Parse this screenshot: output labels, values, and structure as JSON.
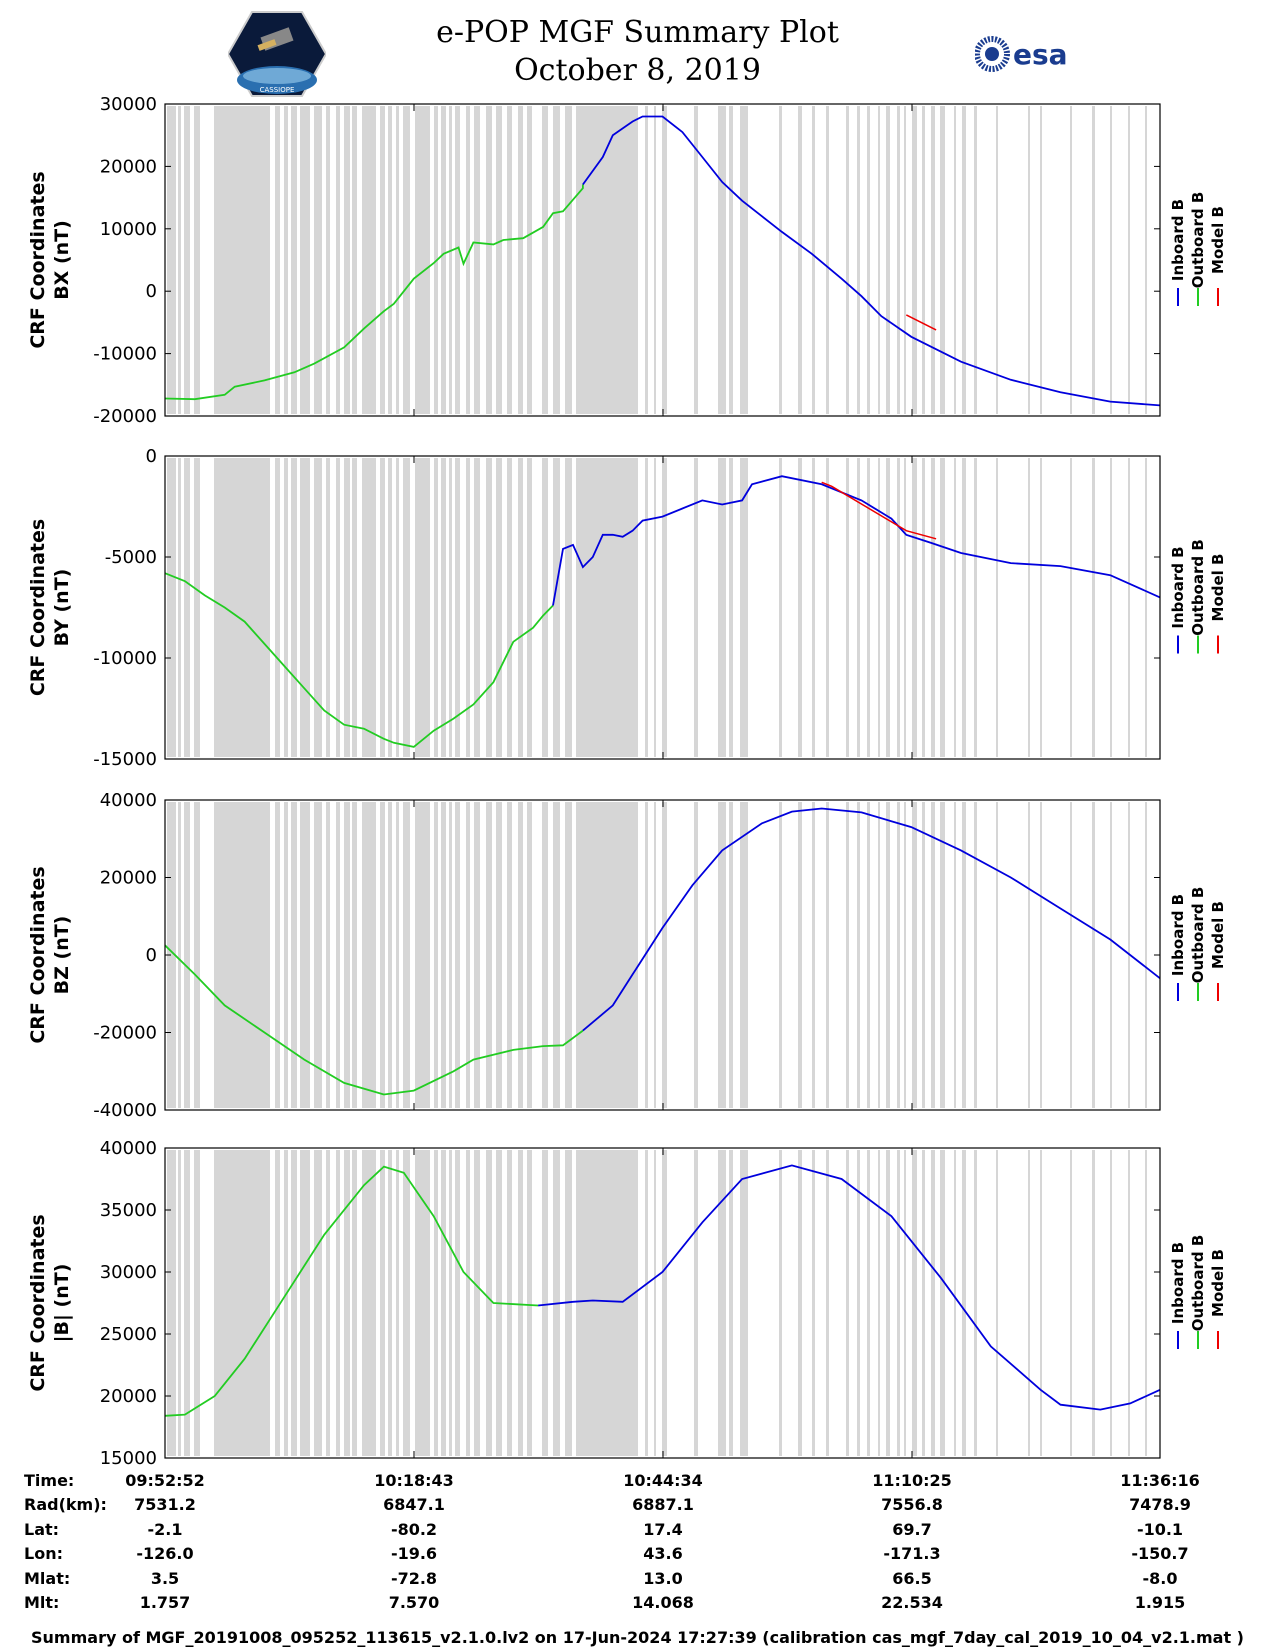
{
  "header": {
    "title_line1": "e-POP MGF Summary Plot",
    "title_line2": "October 8, 2019",
    "logo_left_text": "CASSIOPE",
    "logo_right_text": "esa"
  },
  "legend": {
    "inboard": "Inboard B",
    "outboard": "Outboard B",
    "model": "Model B"
  },
  "colors": {
    "inboard": "#0000dd",
    "outboard": "#22cc22",
    "model": "#ee0000",
    "gap": "#d6d6d6"
  },
  "chart_data": [
    {
      "type": "line",
      "ylabel_line1": "CRF Coordinates",
      "ylabel_line2": "BX (nT)",
      "ylim": [
        -20000,
        30000
      ],
      "yticks": [
        -20000,
        -10000,
        0,
        10000,
        20000,
        30000
      ],
      "series": [
        {
          "name": "Outboard B",
          "points": [
            [
              0,
              -17200
            ],
            [
              0.03,
              -17300
            ],
            [
              0.06,
              -16600
            ],
            [
              0.07,
              -15300
            ],
            [
              0.1,
              -14300
            ],
            [
              0.13,
              -13000
            ],
            [
              0.15,
              -11600
            ],
            [
              0.18,
              -9000
            ],
            [
              0.2,
              -6000
            ],
            [
              0.22,
              -3200
            ],
            [
              0.23,
              -2000
            ],
            [
              0.25,
              2000
            ],
            [
              0.27,
              4500
            ],
            [
              0.28,
              6000
            ],
            [
              0.295,
              7000
            ],
            [
              0.3,
              4400
            ],
            [
              0.31,
              7800
            ],
            [
              0.33,
              7500
            ],
            [
              0.34,
              8200
            ],
            [
              0.36,
              8500
            ],
            [
              0.38,
              10300
            ],
            [
              0.39,
              12500
            ],
            [
              0.4,
              12800
            ],
            [
              0.42,
              16500
            ],
            [
              0.42,
              17100
            ]
          ]
        },
        {
          "name": "Inboard B",
          "points": [
            [
              0.42,
              17100
            ],
            [
              0.44,
              21500
            ],
            [
              0.45,
              25000
            ],
            [
              0.47,
              27200
            ],
            [
              0.48,
              28000
            ],
            [
              0.5,
              28000
            ],
            [
              0.52,
              25500
            ],
            [
              0.54,
              21500
            ],
            [
              0.56,
              17500
            ],
            [
              0.58,
              14500
            ],
            [
              0.6,
              12000
            ],
            [
              0.62,
              9500
            ],
            [
              0.65,
              6000
            ],
            [
              0.68,
              2000
            ],
            [
              0.7,
              -800
            ],
            [
              0.72,
              -4000
            ],
            [
              0.75,
              -7300
            ],
            [
              0.8,
              -11300
            ],
            [
              0.85,
              -14200
            ],
            [
              0.9,
              -16200
            ],
            [
              0.95,
              -17700
            ],
            [
              1.0,
              -18300
            ]
          ]
        },
        {
          "name": "Model B",
          "points": [
            [
              0.745,
              -3800
            ],
            [
              0.76,
              -5000
            ],
            [
              0.775,
              -6200
            ]
          ]
        }
      ]
    },
    {
      "type": "line",
      "ylabel_line1": "CRF Coordinates",
      "ylabel_line2": "BY (nT)",
      "ylim": [
        -15000,
        0
      ],
      "yticks": [
        -15000,
        -10000,
        -5000,
        0
      ],
      "series": [
        {
          "name": "Outboard B",
          "points": [
            [
              0,
              -5800
            ],
            [
              0.02,
              -6200
            ],
            [
              0.04,
              -6900
            ],
            [
              0.06,
              -7500
            ],
            [
              0.08,
              -8200
            ],
            [
              0.1,
              -9300
            ],
            [
              0.12,
              -10400
            ],
            [
              0.14,
              -11500
            ],
            [
              0.16,
              -12600
            ],
            [
              0.18,
              -13300
            ],
            [
              0.2,
              -13500
            ],
            [
              0.22,
              -14000
            ],
            [
              0.23,
              -14200
            ],
            [
              0.25,
              -14400
            ],
            [
              0.27,
              -13600
            ],
            [
              0.29,
              -13000
            ],
            [
              0.31,
              -12300
            ],
            [
              0.33,
              -11200
            ],
            [
              0.35,
              -9200
            ],
            [
              0.37,
              -8500
            ],
            [
              0.38,
              -7900
            ],
            [
              0.39,
              -7400
            ]
          ]
        },
        {
          "name": "Inboard B",
          "points": [
            [
              0.39,
              -7400
            ],
            [
              0.4,
              -4600
            ],
            [
              0.41,
              -4400
            ],
            [
              0.42,
              -5500
            ],
            [
              0.43,
              -5000
            ],
            [
              0.44,
              -3900
            ],
            [
              0.45,
              -3900
            ],
            [
              0.46,
              -4000
            ],
            [
              0.47,
              -3700
            ],
            [
              0.48,
              -3200
            ],
            [
              0.5,
              -3000
            ],
            [
              0.52,
              -2600
            ],
            [
              0.54,
              -2200
            ],
            [
              0.56,
              -2400
            ],
            [
              0.58,
              -2200
            ],
            [
              0.59,
              -1400
            ],
            [
              0.62,
              -1000
            ],
            [
              0.66,
              -1400
            ],
            [
              0.7,
              -2200
            ],
            [
              0.73,
              -3100
            ],
            [
              0.745,
              -3900
            ],
            [
              0.77,
              -4300
            ],
            [
              0.8,
              -4800
            ],
            [
              0.85,
              -5300
            ],
            [
              0.9,
              -5450
            ],
            [
              0.95,
              -5900
            ],
            [
              1.0,
              -7000
            ]
          ]
        },
        {
          "name": "Model B",
          "points": [
            [
              0.66,
              -1300
            ],
            [
              0.67,
              -1500
            ],
            [
              0.745,
              -3700
            ],
            [
              0.775,
              -4100
            ]
          ]
        }
      ]
    },
    {
      "type": "line",
      "ylabel_line1": "CRF Coordinates",
      "ylabel_line2": "BZ (nT)",
      "ylim": [
        -40000,
        40000
      ],
      "yticks": [
        -40000,
        -20000,
        0,
        20000,
        40000
      ],
      "series": [
        {
          "name": "Outboard B",
          "points": [
            [
              0,
              2500
            ],
            [
              0.03,
              -5000
            ],
            [
              0.06,
              -13000
            ],
            [
              0.1,
              -20000
            ],
            [
              0.14,
              -27000
            ],
            [
              0.18,
              -33000
            ],
            [
              0.22,
              -36000
            ],
            [
              0.25,
              -35000
            ],
            [
              0.29,
              -30000
            ],
            [
              0.31,
              -27000
            ],
            [
              0.35,
              -24500
            ],
            [
              0.38,
              -23500
            ],
            [
              0.4,
              -23300
            ],
            [
              0.42,
              -19500
            ]
          ]
        },
        {
          "name": "Inboard B",
          "points": [
            [
              0.42,
              -19500
            ],
            [
              0.45,
              -13000
            ],
            [
              0.47,
              -5000
            ],
            [
              0.5,
              7000
            ],
            [
              0.53,
              18000
            ],
            [
              0.56,
              27000
            ],
            [
              0.6,
              34000
            ],
            [
              0.63,
              37000
            ],
            [
              0.66,
              37800
            ],
            [
              0.7,
              36800
            ],
            [
              0.75,
              33000
            ],
            [
              0.8,
              27000
            ],
            [
              0.85,
              20000
            ],
            [
              0.9,
              12000
            ],
            [
              0.95,
              4000
            ],
            [
              1.0,
              -6000
            ]
          ]
        }
      ]
    },
    {
      "type": "line",
      "ylabel_line1": "CRF Coordinates",
      "ylabel_line2": "|B| (nT)",
      "ylim": [
        15000,
        40000
      ],
      "yticks": [
        15000,
        20000,
        25000,
        30000,
        35000,
        40000
      ],
      "series": [
        {
          "name": "Outboard B",
          "points": [
            [
              0,
              18400
            ],
            [
              0.02,
              18500
            ],
            [
              0.05,
              20000
            ],
            [
              0.08,
              23000
            ],
            [
              0.12,
              28000
            ],
            [
              0.16,
              33000
            ],
            [
              0.2,
              37000
            ],
            [
              0.22,
              38500
            ],
            [
              0.24,
              38000
            ],
            [
              0.27,
              34500
            ],
            [
              0.3,
              30000
            ],
            [
              0.33,
              27500
            ],
            [
              0.375,
              27300
            ]
          ]
        },
        {
          "name": "Inboard B",
          "points": [
            [
              0.375,
              27300
            ],
            [
              0.41,
              27600
            ],
            [
              0.43,
              27700
            ],
            [
              0.46,
              27600
            ],
            [
              0.5,
              30000
            ],
            [
              0.54,
              34000
            ],
            [
              0.58,
              37500
            ],
            [
              0.63,
              38600
            ],
            [
              0.68,
              37500
            ],
            [
              0.73,
              34500
            ],
            [
              0.78,
              29500
            ],
            [
              0.83,
              24000
            ],
            [
              0.88,
              20500
            ],
            [
              0.9,
              19300
            ],
            [
              0.94,
              18900
            ],
            [
              0.97,
              19400
            ],
            [
              1.0,
              20500
            ]
          ]
        }
      ]
    }
  ],
  "footer": {
    "row_labels": [
      "Time:",
      "Rad(km):",
      "Lat:",
      "Lon:",
      "Mlat:",
      "Mlt:"
    ],
    "columns": [
      {
        "time": "09:52:52",
        "rad": "7531.2",
        "lat": "-2.1",
        "lon": "-126.0",
        "mlat": "3.5",
        "mlt": "1.757"
      },
      {
        "time": "10:18:43",
        "rad": "6847.1",
        "lat": "-80.2",
        "lon": "-19.6",
        "mlat": "-72.8",
        "mlt": "7.570"
      },
      {
        "time": "10:44:34",
        "rad": "6887.1",
        "lat": "17.4",
        "lon": "43.6",
        "mlat": "13.0",
        "mlt": "14.068"
      },
      {
        "time": "11:10:25",
        "rad": "7556.8",
        "lat": "69.7",
        "lon": "-171.3",
        "mlat": "66.5",
        "mlt": "22.534"
      },
      {
        "time": "11:36:16",
        "rad": "7478.9",
        "lat": "-10.1",
        "lon": "-150.7",
        "mlat": "-8.0",
        "mlt": "1.915"
      }
    ],
    "summary": "Summary of MGF_20191008_095252_113615_v2.1.0.lv2 on 17-Jun-2024 17:27:39 (calibration cas_mgf_7day_cal_2019_10_04_v2.1.mat )"
  }
}
